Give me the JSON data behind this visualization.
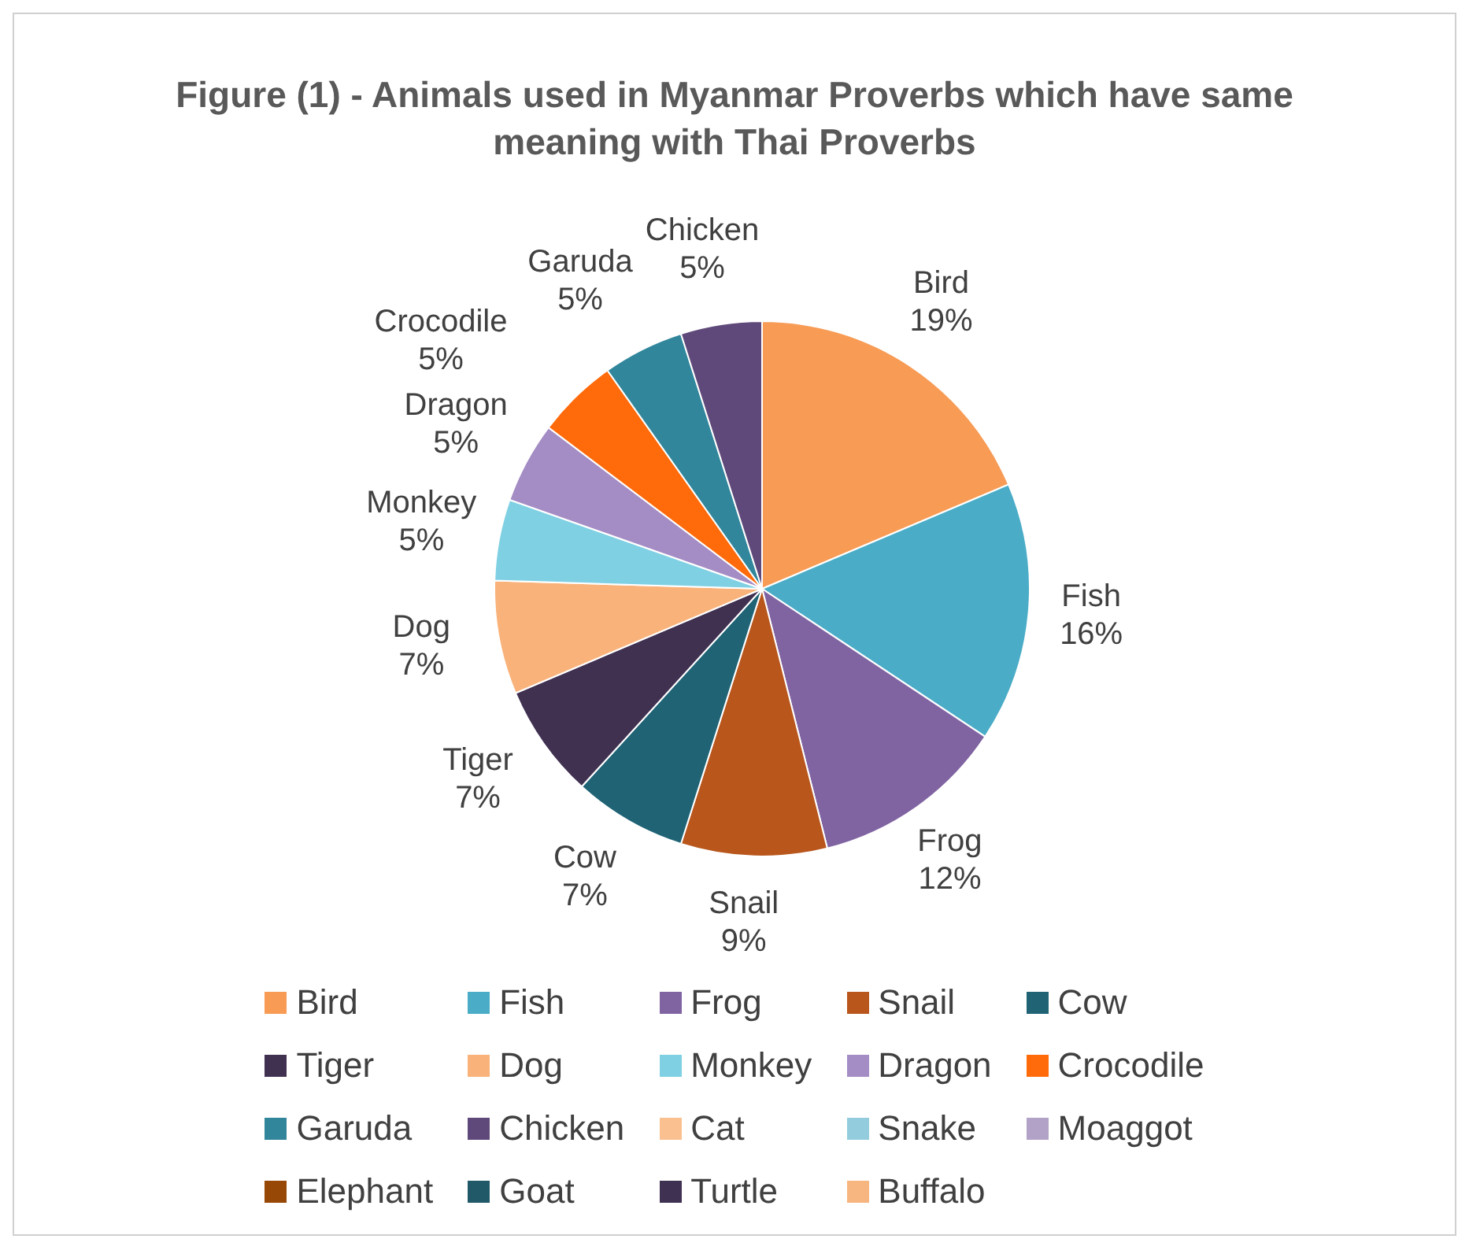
{
  "chart_data": {
    "type": "pie",
    "title": "Figure (1) - Animals used in Myanmar Proverbs which have same meaning with Thai Proverbs",
    "categories": [
      "Bird",
      "Fish",
      "Frog",
      "Snail",
      "Cow",
      "Tiger",
      "Dog",
      "Monkey",
      "Dragon",
      "Crocodile",
      "Garuda",
      "Chicken",
      "Cat",
      "Snake",
      "Moaggot",
      "Elephant",
      "Goat",
      "Turtle",
      "Buffalo"
    ],
    "values": [
      19,
      16,
      12,
      9,
      7,
      7,
      7,
      5,
      5,
      5,
      5,
      5,
      0,
      0,
      0,
      0,
      0,
      0,
      0
    ],
    "colors": [
      "#f79b55",
      "#4aacc6",
      "#8064a2",
      "#b8561c",
      "#1f6375",
      "#403151",
      "#f9b27a",
      "#7fd0e3",
      "#a48cc4",
      "#ff6a0a",
      "#31869b",
      "#5f497a",
      "#fac090",
      "#93cddd",
      "#b3a2c7",
      "#974706",
      "#215968",
      "#3f3151",
      "#f7b57f"
    ],
    "value_labels": [
      "19%",
      "16%",
      "12%",
      "9%",
      "7%",
      "7%",
      "7%",
      "5%",
      "5%",
      "5%",
      "5%",
      "5%",
      null,
      null,
      null,
      null,
      null,
      null,
      null
    ],
    "legend": "bottom"
  }
}
